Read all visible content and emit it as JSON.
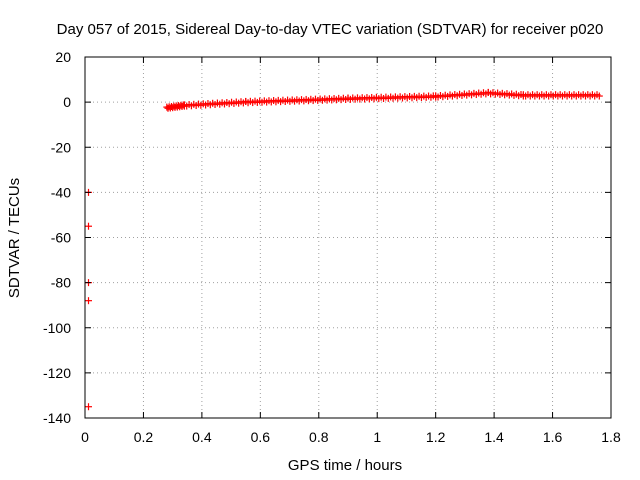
{
  "chart_data": {
    "type": "scatter",
    "title": "Day 057 of 2015, Sidereal Day-to-day VTEC variation (SDTVAR) for receiver p020",
    "xlabel": "GPS time / hours",
    "ylabel": "SDTVAR / TECUs",
    "xlim": [
      0,
      1.8
    ],
    "ylim": [
      -140,
      20
    ],
    "grid": true,
    "marker": "plus",
    "color": "#ff0000",
    "x_ticks": [
      0,
      0.2,
      0.4,
      0.6,
      0.8,
      1,
      1.2,
      1.4,
      1.6,
      1.8
    ],
    "x_tick_labels": [
      "0",
      "0.2",
      "0.4",
      "0.6",
      "0.8",
      "1",
      "1.2",
      "1.4",
      "1.6",
      "1.8"
    ],
    "y_ticks": [
      20,
      0,
      -20,
      -40,
      -60,
      -80,
      -100,
      -120,
      -140
    ],
    "y_tick_labels": [
      "20",
      "0",
      "-20",
      "-40",
      "-60",
      "-80",
      "-100",
      "-120",
      "-140"
    ],
    "outliers": [
      {
        "x": 0.012,
        "y": -40
      },
      {
        "x": 0.012,
        "y": -55
      },
      {
        "x": 0.012,
        "y": -80
      },
      {
        "x": 0.012,
        "y": -88
      },
      {
        "x": 0.012,
        "y": -135
      }
    ],
    "series_segments": [
      {
        "x_start": 0.28,
        "x_end": 0.34,
        "step": 0.004,
        "y_start": -2.5,
        "y_end": -1.5
      },
      {
        "x_start": 0.34,
        "x_end": 0.55,
        "step": 0.008,
        "y_start": -1.5,
        "y_end": 0.0
      },
      {
        "x_start": 0.55,
        "x_end": 0.9,
        "step": 0.008,
        "y_start": 0.0,
        "y_end": 1.5
      },
      {
        "x_start": 0.9,
        "x_end": 1.2,
        "step": 0.008,
        "y_start": 1.5,
        "y_end": 2.5
      },
      {
        "x_start": 1.2,
        "x_end": 1.38,
        "step": 0.008,
        "y_start": 2.5,
        "y_end": 4.0
      },
      {
        "x_start": 1.38,
        "x_end": 1.5,
        "step": 0.008,
        "y_start": 4.0,
        "y_end": 3.0
      },
      {
        "x_start": 1.5,
        "x_end": 1.76,
        "step": 0.008,
        "y_start": 3.0,
        "y_end": 3.0
      }
    ]
  }
}
